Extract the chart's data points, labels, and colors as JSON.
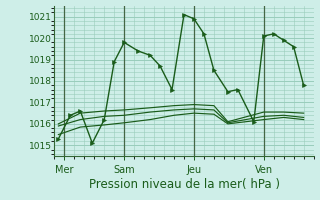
{
  "bg_color": "#ceeee8",
  "grid_color": "#99ccbb",
  "line_color": "#1a5c1a",
  "xlabel": "Pression niveau de la mer( hPa )",
  "xlabel_fontsize": 8.5,
  "ylim": [
    1014.5,
    1021.5
  ],
  "yticks": [
    1015,
    1016,
    1017,
    1018,
    1019,
    1020,
    1021
  ],
  "xtick_labels": [
    "Mer",
    "Sam",
    "Jeu",
    "Ven"
  ],
  "xtick_positions": [
    0.5,
    3.5,
    7.0,
    10.5
  ],
  "xlim": [
    0,
    13.0
  ],
  "vline_positions": [
    0.5,
    3.5,
    7.0,
    10.5
  ],
  "series": [
    {
      "x": [
        0.2,
        0.8,
        1.3,
        1.9,
        2.5,
        3.0,
        3.5,
        4.2,
        4.8,
        5.3,
        5.9,
        6.5,
        7.0,
        7.5,
        8.0,
        8.7,
        9.2,
        10.0,
        10.5,
        11.0,
        11.5,
        12.0,
        12.5
      ],
      "y": [
        1015.3,
        1016.4,
        1016.6,
        1015.1,
        1016.2,
        1018.9,
        1019.8,
        1019.4,
        1019.2,
        1018.7,
        1017.6,
        1021.1,
        1020.9,
        1020.2,
        1018.5,
        1017.5,
        1017.6,
        1016.1,
        1020.1,
        1020.2,
        1019.9,
        1019.6,
        1017.8
      ],
      "has_markers": true
    },
    {
      "x": [
        0.2,
        1.3,
        2.5,
        3.5,
        4.8,
        6.0,
        7.0,
        8.0,
        8.7,
        10.5,
        11.5,
        12.5
      ],
      "y": [
        1016.0,
        1016.5,
        1016.6,
        1016.65,
        1016.75,
        1016.85,
        1016.9,
        1016.85,
        1016.1,
        1016.55,
        1016.55,
        1016.5
      ],
      "has_markers": false
    },
    {
      "x": [
        0.2,
        1.3,
        2.5,
        3.5,
        4.8,
        6.0,
        7.0,
        8.0,
        8.7,
        10.5,
        11.5,
        12.5
      ],
      "y": [
        1015.9,
        1016.2,
        1016.35,
        1016.4,
        1016.55,
        1016.65,
        1016.7,
        1016.65,
        1016.05,
        1016.35,
        1016.4,
        1016.3
      ],
      "has_markers": false
    },
    {
      "x": [
        0.2,
        1.3,
        2.5,
        3.5,
        4.8,
        6.0,
        7.0,
        8.0,
        8.7,
        10.5,
        11.5,
        12.5
      ],
      "y": [
        1015.5,
        1015.85,
        1015.95,
        1016.05,
        1016.2,
        1016.4,
        1016.5,
        1016.45,
        1016.0,
        1016.2,
        1016.3,
        1016.2
      ],
      "has_markers": false
    }
  ]
}
